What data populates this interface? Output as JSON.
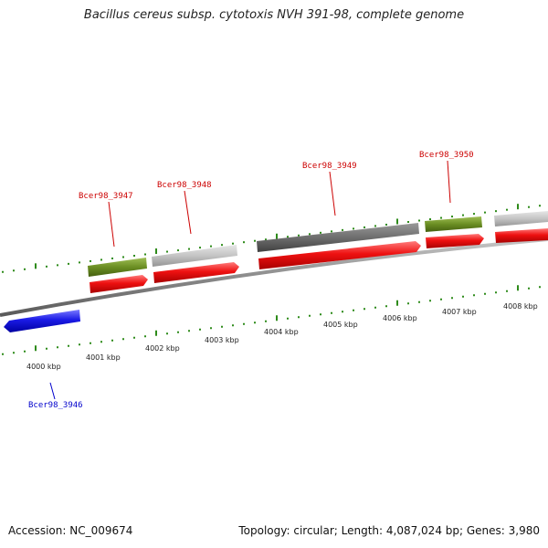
{
  "title": "Bacillus cereus subsp. cytotoxis NVH 391-98, complete genome",
  "footer": {
    "accession": "Accession: NC_009674",
    "topology": "Topology: circular; Length: 4,087,024 bp; Genes: 3,980"
  },
  "scale": {
    "labels": [
      "4000 kbp",
      "4001 kbp",
      "4002 kbp",
      "4003 kbp",
      "4004 kbp",
      "4005 kbp",
      "4006 kbp",
      "4007 kbp",
      "4008 kbp"
    ]
  },
  "genes": [
    {
      "name": "Bcer98_3946",
      "color": "#0000cc"
    },
    {
      "name": "Bcer98_3947",
      "color": "#cc0000"
    },
    {
      "name": "Bcer98_3948",
      "color": "#cc0000"
    },
    {
      "name": "Bcer98_3949",
      "color": "#cc0000"
    },
    {
      "name": "Bcer98_3950",
      "color": "#cc0000"
    }
  ],
  "colors": {
    "backbone": "#8a8a8a",
    "tick": "#2e8b1a",
    "forward_cds": "#ee1111",
    "reverse_cds": "#1a1ae6",
    "olive_feature": "#6b8e23",
    "light_gray_feature": "#bdbdbd",
    "dark_gray_feature": "#6e6e6e"
  }
}
